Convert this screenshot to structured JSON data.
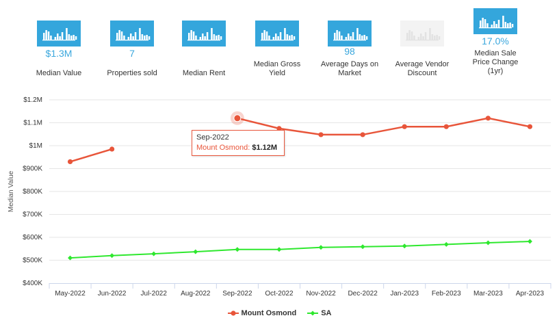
{
  "stats": [
    {
      "id": "median-value",
      "value": "$1.3M",
      "label_lines": [
        "Median Value"
      ],
      "enabled": true
    },
    {
      "id": "properties-sold",
      "value": "7",
      "label_lines": [
        "Properties sold"
      ],
      "enabled": true
    },
    {
      "id": "median-rent",
      "value": "",
      "label_lines": [
        "Median Rent"
      ],
      "enabled": true
    },
    {
      "id": "median-gross-yield",
      "value": "",
      "label_lines": [
        "Median Gross",
        "Yield"
      ],
      "enabled": true
    },
    {
      "id": "average-days-on-market",
      "value": "98",
      "label_lines": [
        "Average Days on",
        "Market"
      ],
      "enabled": true
    },
    {
      "id": "average-vendor-discount",
      "value": "",
      "label_lines": [
        "Average Vendor",
        "Discount"
      ],
      "enabled": false
    },
    {
      "id": "median-sale-price-change",
      "value": "17.0%",
      "label_lines": [
        "Median Sale",
        "Price Change",
        "(1yr)"
      ],
      "enabled": true
    }
  ],
  "colors": {
    "accent": "#34a6dc",
    "mount_osmond": "#e8553a",
    "sa": "#2ee82e",
    "grid": "#e6e6e6"
  },
  "tooltip": {
    "period": "Sep-2022",
    "series": "Mount Osmond",
    "value": "$1.12M"
  },
  "chart_data": {
    "type": "line",
    "title": "",
    "xlabel": "",
    "ylabel": "Median Value",
    "ylim": [
      400000,
      1200000
    ],
    "yticks": [
      400000,
      500000,
      600000,
      700000,
      800000,
      900000,
      1000000,
      1100000,
      1200000
    ],
    "ytick_labels": [
      "$400K",
      "$500K",
      "$600K",
      "$700K",
      "$800K",
      "$900K",
      "$1M",
      "$1.1M",
      "$1.2M"
    ],
    "categories": [
      "May-2022",
      "Jun-2022",
      "Jul-2022",
      "Aug-2022",
      "Sep-2022",
      "Oct-2022",
      "Nov-2022",
      "Dec-2022",
      "Jan-2023",
      "Feb-2023",
      "Mar-2023",
      "Apr-2023"
    ],
    "series": [
      {
        "name": "Mount Osmond",
        "values": [
          930000,
          985000,
          null,
          null,
          1120000,
          1075000,
          1048000,
          1048000,
          1083000,
          1083000,
          1120000,
          1083000
        ]
      },
      {
        "name": "SA",
        "values": [
          510000,
          520000,
          528000,
          537000,
          547000,
          547000,
          556000,
          559000,
          562000,
          569000,
          576000,
          582000
        ]
      }
    ],
    "grid": true,
    "legend": "bottom-center",
    "highlight": {
      "series": "Mount Osmond",
      "category": "Sep-2022"
    }
  }
}
